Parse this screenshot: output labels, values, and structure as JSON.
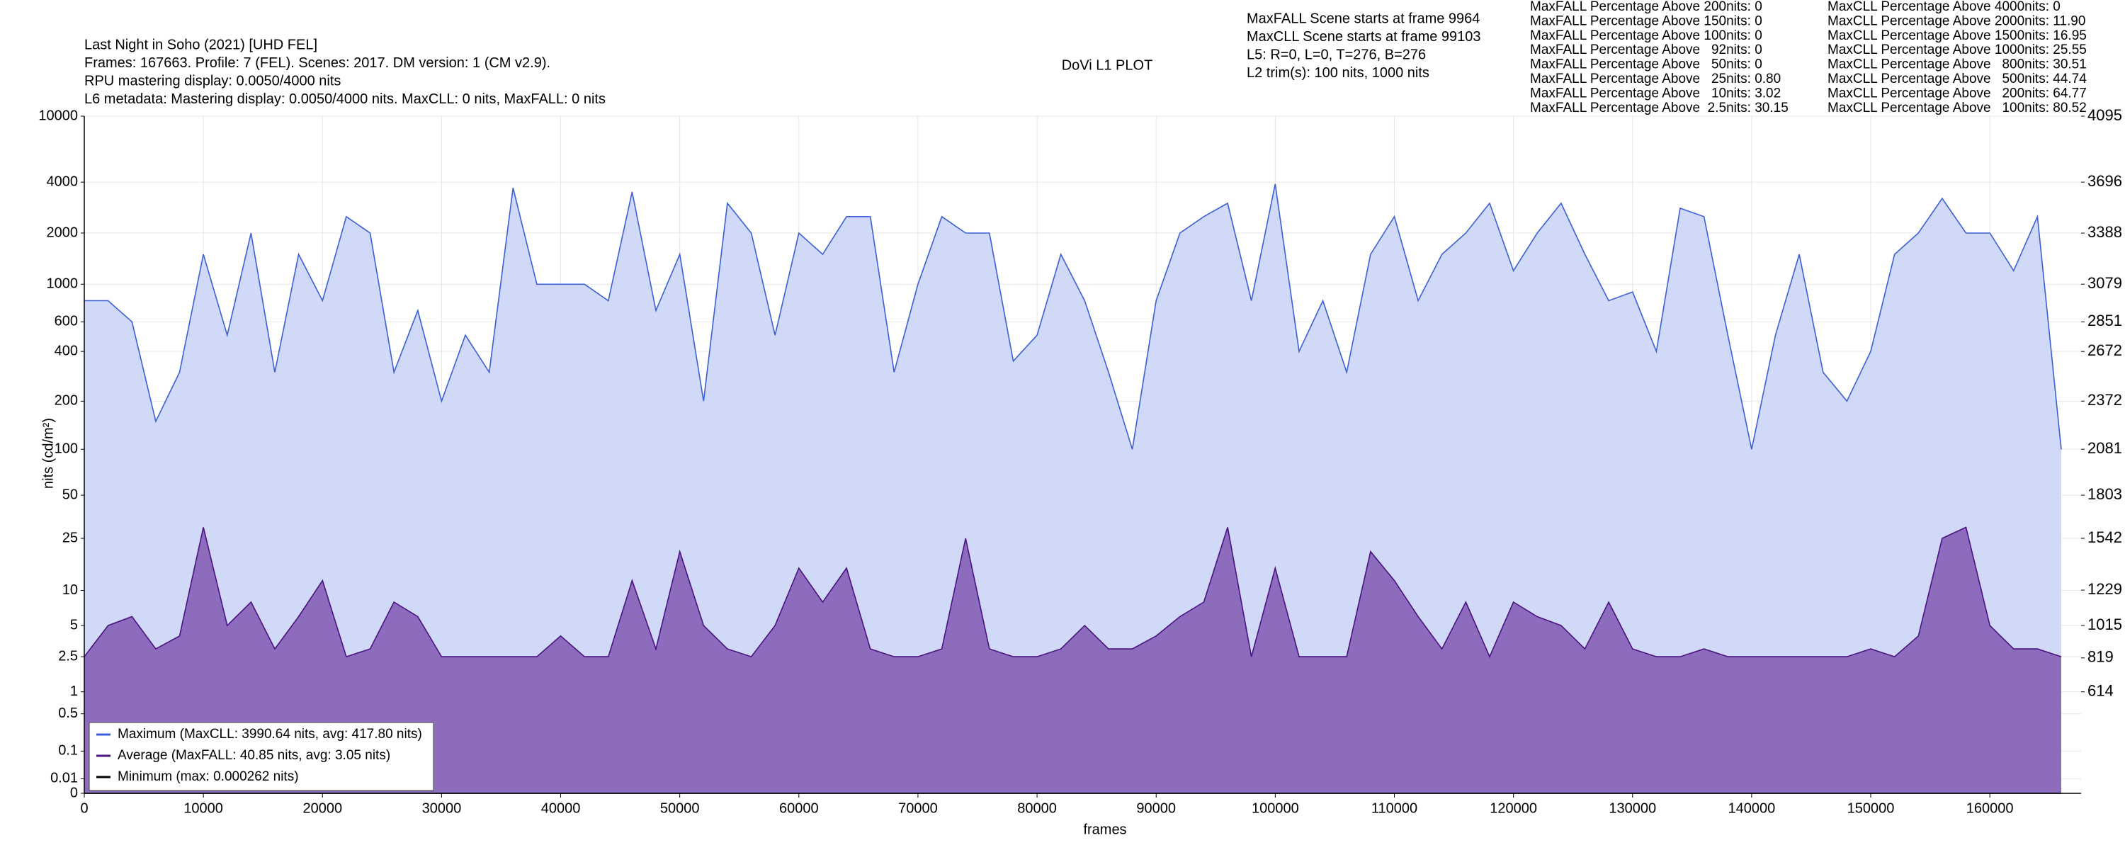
{
  "chart_data": {
    "type": "line",
    "title": "DoVi L1 PLOT",
    "header": [
      "Last Night in Soho (2021) [UHD FEL]",
      "Frames: 167663. Profile: 7 (FEL). Scenes: 2017. DM version: 1 (CM v2.9).",
      "RPU mastering display: 0.0050/4000 nits",
      "L6 metadata: Mastering display: 0.0050/4000 nits. MaxCLL: 0 nits, MaxFALL: 0 nits"
    ],
    "info": [
      "MaxFALL Scene starts at frame 9964",
      "MaxCLL Scene starts at frame 99103",
      "L5: R=0, L=0, T=276, B=276",
      "L2 trim(s): 100 nits, 1000 nits"
    ],
    "stats_maxfall": [
      "MaxFALL Percentage Above 200nits: 0",
      "MaxFALL Percentage Above 150nits: 0",
      "MaxFALL Percentage Above 100nits: 0",
      "MaxFALL Percentage Above   92nits: 0",
      "MaxFALL Percentage Above   50nits: 0",
      "MaxFALL Percentage Above   25nits: 0.80",
      "MaxFALL Percentage Above   10nits: 3.02",
      "MaxFALL Percentage Above  2.5nits: 30.15"
    ],
    "stats_maxcll": [
      "MaxCLL Percentage Above 4000nits: 0",
      "MaxCLL Percentage Above 2000nits: 11.90",
      "MaxCLL Percentage Above 1500nits: 16.95",
      "MaxCLL Percentage Above 1000nits: 25.55",
      "MaxCLL Percentage Above   800nits: 30.51",
      "MaxCLL Percentage Above   500nits: 44.74",
      "MaxCLL Percentage Above   200nits: 64.77",
      "MaxCLL Percentage Above   100nits: 80.52"
    ],
    "x_label": "frames",
    "y_label": "nits (cd/m²)",
    "x": [
      0,
      2000,
      4000,
      6000,
      8000,
      10000,
      12000,
      14000,
      16000,
      18000,
      20000,
      22000,
      24000,
      26000,
      28000,
      30000,
      32000,
      34000,
      36000,
      38000,
      40000,
      42000,
      44000,
      46000,
      48000,
      50000,
      52000,
      54000,
      56000,
      58000,
      60000,
      62000,
      64000,
      66000,
      68000,
      70000,
      72000,
      74000,
      76000,
      78000,
      80000,
      82000,
      84000,
      86000,
      88000,
      90000,
      92000,
      94000,
      96000,
      98000,
      100000,
      102000,
      104000,
      106000,
      108000,
      110000,
      112000,
      114000,
      116000,
      118000,
      120000,
      122000,
      124000,
      126000,
      128000,
      130000,
      132000,
      134000,
      136000,
      138000,
      140000,
      142000,
      144000,
      146000,
      148000,
      150000,
      152000,
      154000,
      156000,
      158000,
      160000,
      162000,
      164000,
      166000
    ],
    "xlim": [
      0,
      167663
    ],
    "xticks": [
      0,
      10000,
      20000,
      30000,
      40000,
      50000,
      60000,
      70000,
      80000,
      90000,
      100000,
      110000,
      120000,
      130000,
      140000,
      150000,
      160000
    ],
    "ylim": [
      0,
      10000
    ],
    "yscale": "pq",
    "yticks": [
      10000,
      4000,
      2000,
      1000,
      600,
      400,
      200,
      100,
      50,
      25,
      10,
      5,
      2.5,
      1,
      0.5,
      0.1,
      0.01,
      0
    ],
    "y2lim": [
      0,
      4095
    ],
    "y2ticks": [
      4095,
      3696,
      3388,
      3079,
      2851,
      2672,
      2372,
      2081,
      1803,
      1542,
      1229,
      1015,
      819,
      614
    ],
    "grid": true,
    "legend": "lower left",
    "series": [
      {
        "name": "Maximum (MaxCLL: 3990.64 nits, avg: 417.80 nits)",
        "color": "#3c5fd8",
        "fill": "#d0d9f7",
        "values": [
          800,
          800,
          600,
          150,
          300,
          1500,
          500,
          2000,
          300,
          1500,
          800,
          2500,
          2000,
          300,
          700,
          200,
          500,
          300,
          3700,
          1000,
          1000,
          1000,
          800,
          3500,
          700,
          1500,
          200,
          3000,
          2000,
          500,
          2000,
          1500,
          2500,
          2500,
          300,
          1000,
          2500,
          2000,
          2000,
          350,
          500,
          1500,
          800,
          300,
          100,
          800,
          2000,
          2500,
          3000,
          800,
          3900,
          400,
          800,
          300,
          1500,
          2500,
          800,
          1500,
          2000,
          3000,
          1200,
          2000,
          3000,
          1500,
          800,
          900,
          400,
          2800,
          2500,
          500,
          100,
          500,
          1500,
          300,
          200,
          400,
          1500,
          2000,
          3200,
          2000,
          2000,
          1200,
          2500,
          100
        ]
      },
      {
        "name": "Average (MaxFALL: 40.85 nits, avg: 3.05 nits)",
        "color": "#4a1282",
        "fill": "#8e6cbd",
        "values": [
          2.5,
          5,
          6,
          3,
          4,
          30,
          5,
          8,
          3,
          6,
          12,
          2.5,
          3,
          8,
          6,
          2.5,
          2.5,
          2.5,
          2.5,
          2.5,
          4,
          2.5,
          2.5,
          12,
          3,
          20,
          5,
          3,
          2.5,
          5,
          15,
          8,
          15,
          3,
          2.5,
          2.5,
          3,
          25,
          3,
          2.5,
          2.5,
          3,
          5,
          3,
          3,
          4,
          6,
          8,
          30,
          2.5,
          15,
          2.5,
          2.5,
          2.5,
          20,
          12,
          6,
          3,
          8,
          2.5,
          8,
          6,
          5,
          3,
          8,
          3,
          2.5,
          2.5,
          3,
          2.5,
          2.5,
          2.5,
          2.5,
          2.5,
          2.5,
          3,
          2.5,
          4,
          25,
          30,
          5,
          3,
          3,
          2.5
        ]
      },
      {
        "name": "Minimum (max: 0.000262 nits)",
        "color": "#000000",
        "values": [
          0,
          0,
          0,
          0,
          0,
          0,
          0,
          0,
          0,
          0,
          0,
          0,
          0,
          0,
          0,
          0,
          0,
          0,
          0,
          0,
          0,
          0,
          0,
          0,
          0,
          0,
          0,
          0,
          0,
          0,
          0,
          0,
          0,
          0,
          0,
          0,
          0,
          0,
          0,
          0,
          0,
          0,
          0,
          0,
          0,
          0,
          0,
          0,
          0,
          0,
          0,
          0,
          0,
          0,
          0,
          0,
          0,
          0,
          0,
          0,
          0,
          0,
          0,
          0,
          0,
          0,
          0,
          0,
          0,
          0,
          0,
          0,
          0,
          0,
          0,
          0,
          0,
          0,
          0,
          0,
          0,
          0,
          0,
          0
        ]
      }
    ]
  }
}
